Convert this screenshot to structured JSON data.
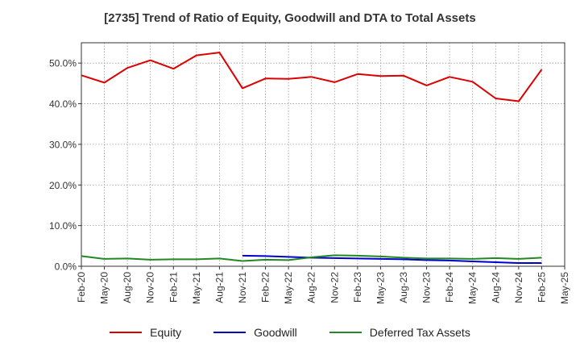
{
  "chart_data": {
    "type": "line",
    "title": "[2735]  Trend of Ratio of Equity, Goodwill and DTA to Total Assets",
    "xlabel": "",
    "ylabel": "",
    "ylim": [
      0,
      55
    ],
    "yticks": [
      0,
      10,
      20,
      30,
      40,
      50
    ],
    "ytick_labels": [
      "0.0%",
      "10.0%",
      "20.0%",
      "30.0%",
      "40.0%",
      "50.0%"
    ],
    "x": [
      "Feb-20",
      "May-20",
      "Aug-20",
      "Nov-20",
      "Feb-21",
      "May-21",
      "Aug-21",
      "Nov-21",
      "Feb-22",
      "May-22",
      "Aug-22",
      "Nov-22",
      "Feb-23",
      "May-23",
      "Aug-23",
      "Nov-23",
      "Feb-24",
      "May-24",
      "Aug-24",
      "Nov-24",
      "Feb-25",
      "May-25"
    ],
    "grid": true,
    "legend_position": "bottom",
    "series": [
      {
        "name": "Equity",
        "color": "#dd0000",
        "values": [
          47.0,
          45.2,
          48.8,
          50.7,
          48.6,
          51.9,
          52.6,
          43.8,
          46.2,
          46.1,
          46.6,
          45.3,
          47.3,
          46.8,
          46.9,
          44.5,
          46.6,
          45.4,
          41.3,
          40.6,
          48.4,
          null
        ]
      },
      {
        "name": "Goodwill",
        "color": "#0000cc",
        "values": [
          null,
          null,
          null,
          null,
          null,
          null,
          null,
          2.6,
          2.5,
          2.3,
          2.1,
          2.0,
          1.9,
          1.8,
          1.7,
          1.5,
          1.4,
          1.2,
          1.0,
          0.8,
          0.8,
          null
        ]
      },
      {
        "name": "Deferred Tax Assets",
        "color": "#228822",
        "values": [
          2.5,
          1.8,
          1.9,
          1.6,
          1.7,
          1.7,
          1.9,
          1.3,
          1.6,
          1.5,
          2.2,
          2.7,
          2.6,
          2.4,
          2.1,
          1.9,
          1.9,
          1.8,
          2.0,
          1.8,
          2.1,
          null
        ]
      }
    ]
  }
}
